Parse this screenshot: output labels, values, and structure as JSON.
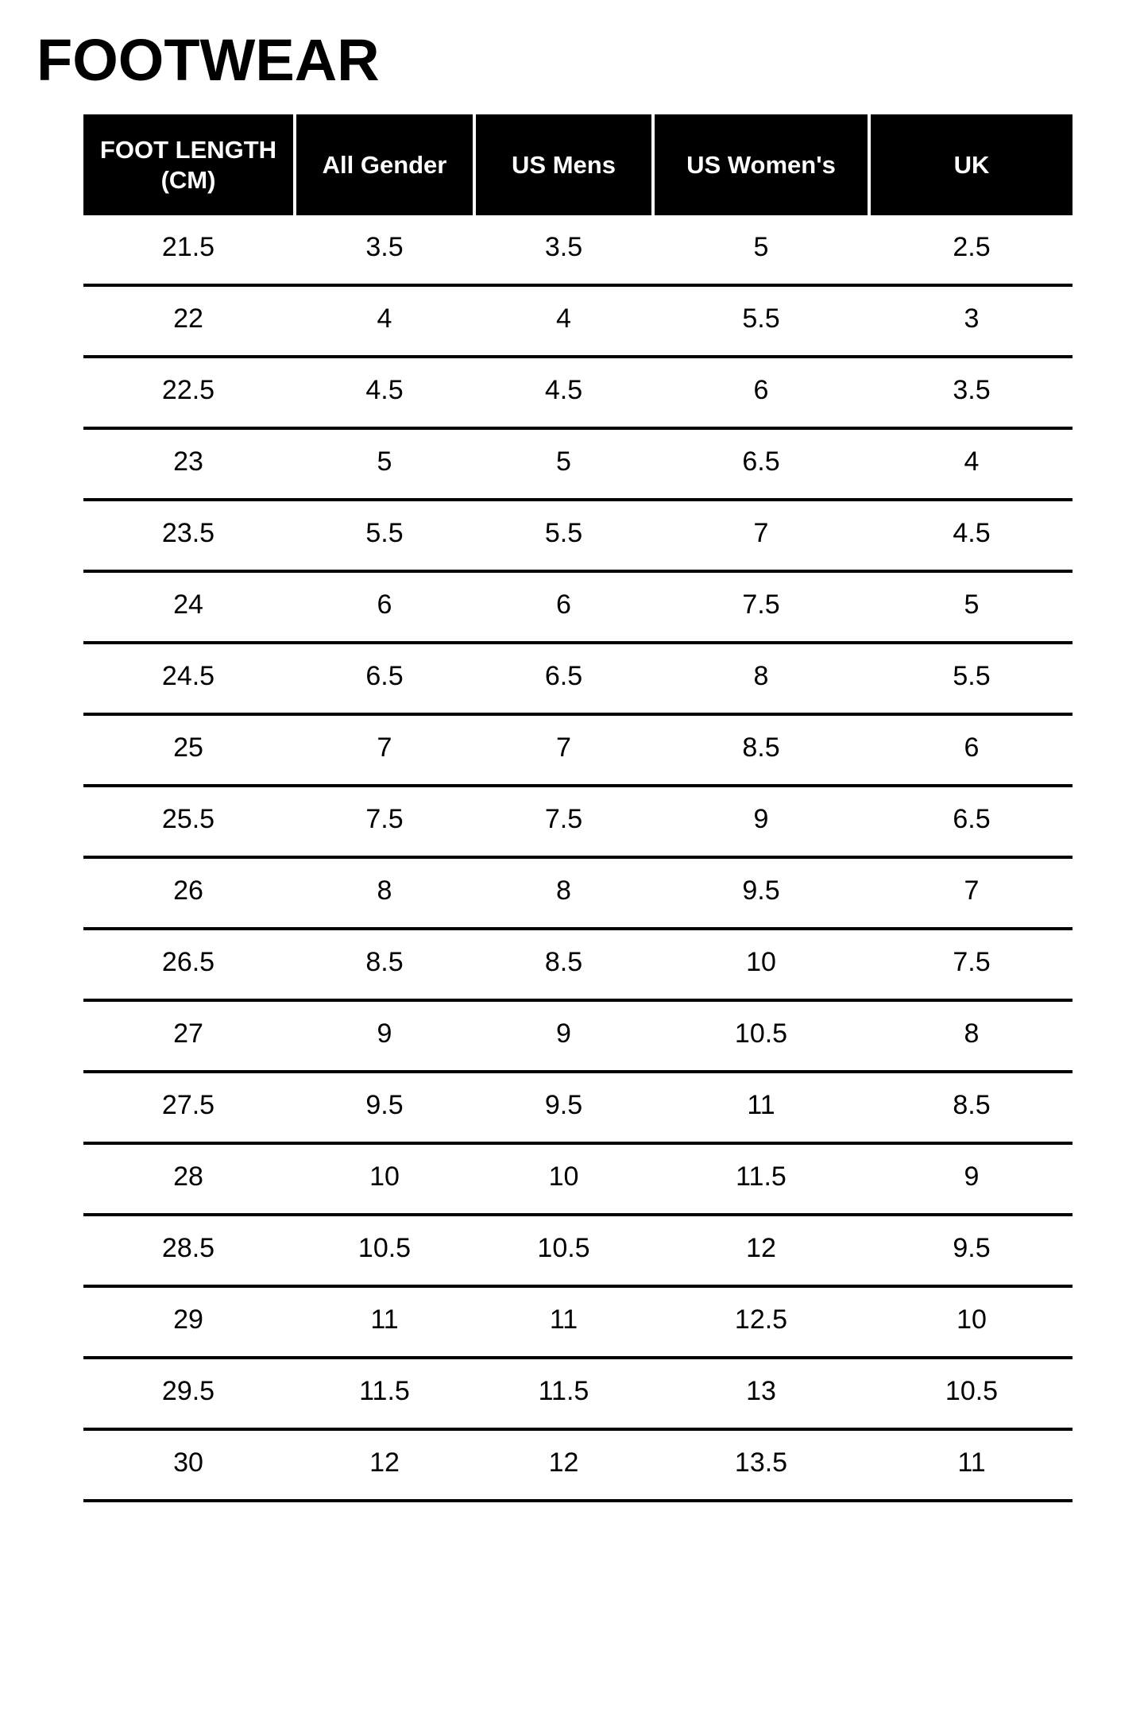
{
  "title": "FOOTWEAR",
  "table": {
    "headers": [
      "FOOT LENGTH (CM)",
      "All Gender",
      "US Mens",
      "US Women's",
      "UK"
    ],
    "rows": [
      [
        "21.5",
        "3.5",
        "3.5",
        "5",
        "2.5"
      ],
      [
        "22",
        "4",
        "4",
        "5.5",
        "3"
      ],
      [
        "22.5",
        "4.5",
        "4.5",
        "6",
        "3.5"
      ],
      [
        "23",
        "5",
        "5",
        "6.5",
        "4"
      ],
      [
        "23.5",
        "5.5",
        "5.5",
        "7",
        "4.5"
      ],
      [
        "24",
        "6",
        "6",
        "7.5",
        "5"
      ],
      [
        "24.5",
        "6.5",
        "6.5",
        "8",
        "5.5"
      ],
      [
        "25",
        "7",
        "7",
        "8.5",
        "6"
      ],
      [
        "25.5",
        "7.5",
        "7.5",
        "9",
        "6.5"
      ],
      [
        "26",
        "8",
        "8",
        "9.5",
        "7"
      ],
      [
        "26.5",
        "8.5",
        "8.5",
        "10",
        "7.5"
      ],
      [
        "27",
        "9",
        "9",
        "10.5",
        "8"
      ],
      [
        "27.5",
        "9.5",
        "9.5",
        "11",
        "8.5"
      ],
      [
        "28",
        "10",
        "10",
        "11.5",
        "9"
      ],
      [
        "28.5",
        "10.5",
        "10.5",
        "12",
        "9.5"
      ],
      [
        "29",
        "11",
        "11",
        "12.5",
        "10"
      ],
      [
        "29.5",
        "11.5",
        "11.5",
        "13",
        "10.5"
      ],
      [
        "30",
        "12",
        "12",
        "13.5",
        "11"
      ]
    ]
  },
  "colors": {
    "page_bg": "#ffffff",
    "header_bg": "#000000",
    "header_text": "#ffffff",
    "text": "#000000",
    "row_line": "#000000"
  }
}
